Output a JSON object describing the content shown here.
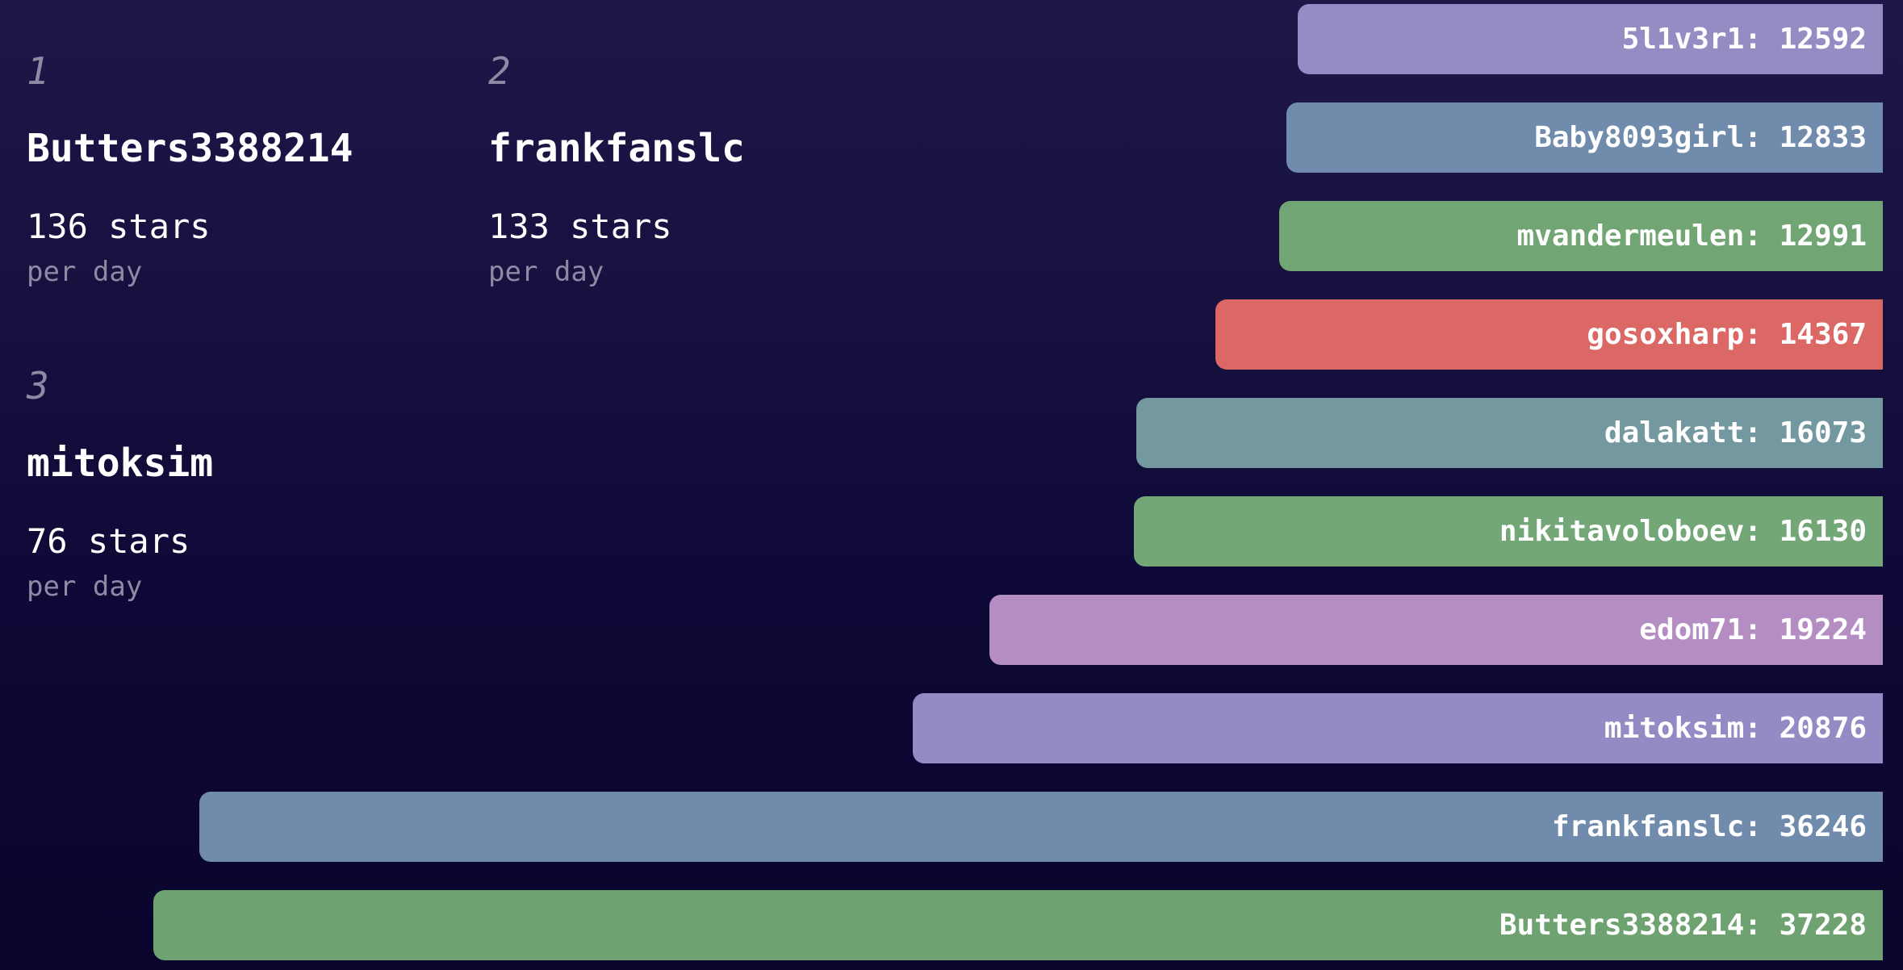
{
  "chart_data": {
    "type": "bar",
    "orientation": "horizontal",
    "alignment": "right",
    "value_baseline": 0,
    "value_max": 37228,
    "axes_hidden": true,
    "grid": false,
    "legend_position": "none",
    "bar_label_format": "{name}: {value}",
    "categories": [
      "5l1v3r1",
      "Baby8093girl",
      "mvandermeulen",
      "gosoxharp",
      "dalakatt",
      "nikitavoloboev",
      "edom71",
      "mitoksim",
      "frankfanslc",
      "Butters3388214"
    ],
    "values": [
      12592,
      12833,
      12991,
      14367,
      16073,
      16130,
      19224,
      20876,
      36246,
      37228
    ],
    "bars": [
      {
        "name": "5l1v3r1",
        "value": 12592,
        "color": "#948cc3"
      },
      {
        "name": "Baby8093girl",
        "value": 12833,
        "color": "#708bac"
      },
      {
        "name": "mvandermeulen",
        "value": 12991,
        "color": "#71a573"
      },
      {
        "name": "gosoxharp",
        "value": 14367,
        "color": "#db6865"
      },
      {
        "name": "dalakatt",
        "value": 16073,
        "color": "#74989f"
      },
      {
        "name": "nikitavoloboev",
        "value": 16130,
        "color": "#73a777"
      },
      {
        "name": "edom71",
        "value": 19224,
        "color": "#b48ec3"
      },
      {
        "name": "mitoksim",
        "value": 20876,
        "color": "#938cc4"
      },
      {
        "name": "frankfanslc",
        "value": 36246,
        "color": "#708bac"
      },
      {
        "name": "Butters3388214",
        "value": 37228,
        "color": "#6fa271"
      }
    ]
  },
  "rank_cards": [
    {
      "rank": "1",
      "username": "Butters3388214",
      "rate": "136 stars",
      "unit": "per day"
    },
    {
      "rank": "2",
      "username": "frankfanslc",
      "rate": "133 stars",
      "unit": "per day"
    },
    {
      "rank": "3",
      "username": "mitoksim",
      "rate": "76 stars",
      "unit": "per day"
    }
  ],
  "colors": {
    "background_top": "#1e1849",
    "background_bottom": "#0a052c",
    "text_primary": "#ffffff",
    "text_muted": "#8e89a4",
    "bar_label": "#ffffff"
  }
}
